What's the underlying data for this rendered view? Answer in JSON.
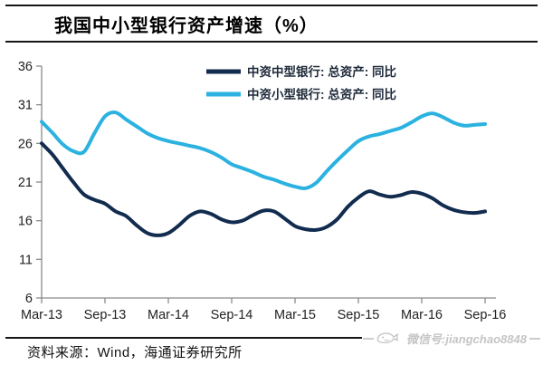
{
  "header": {
    "title": "我国中小型银行资产增速（%）"
  },
  "chart_data": {
    "type": "line",
    "title": "我国中小型银行资产增速（%）",
    "grid": false,
    "legend_position": "top-center",
    "ylim": [
      6,
      36
    ],
    "y_ticks": [
      36,
      31,
      26,
      21,
      16,
      11,
      6
    ],
    "x_tick_labels": [
      "Mar-13",
      "Sep-13",
      "Mar-14",
      "Sep-14",
      "Mar-15",
      "Sep-15",
      "Mar-16",
      "Sep-16"
    ],
    "x_tick_month_indices": [
      0,
      6,
      12,
      18,
      24,
      30,
      36,
      42
    ],
    "x_unit": "monthly points from Mar-13 to Sep-16",
    "series": [
      {
        "name": "中资中型银行: 总资产: 同比",
        "color": "#122c4f",
        "values": [
          26.0,
          24.6,
          22.8,
          21.0,
          19.4,
          18.7,
          18.2,
          17.2,
          16.6,
          15.4,
          14.4,
          14.1,
          14.4,
          15.4,
          16.6,
          17.2,
          16.9,
          16.2,
          15.8,
          16.0,
          16.7,
          17.3,
          17.2,
          16.3,
          15.3,
          14.9,
          14.8,
          15.2,
          16.2,
          17.8,
          19.0,
          19.8,
          19.4,
          19.1,
          19.3,
          19.7,
          19.5,
          18.9,
          18.0,
          17.4,
          17.1,
          17.0,
          17.2
        ]
      },
      {
        "name": "中资小型银行: 总资产: 同比",
        "color": "#2bb2e0",
        "values": [
          28.8,
          27.4,
          25.9,
          25.0,
          24.9,
          27.3,
          29.5,
          30.0,
          29.1,
          28.2,
          27.3,
          26.7,
          26.3,
          26.0,
          25.7,
          25.4,
          24.9,
          24.2,
          23.3,
          22.8,
          22.3,
          21.7,
          21.3,
          20.8,
          20.4,
          20.2,
          20.9,
          22.4,
          23.8,
          25.1,
          26.3,
          26.9,
          27.2,
          27.6,
          28.0,
          28.7,
          29.5,
          29.9,
          29.4,
          28.7,
          28.3,
          28.4,
          28.5
        ]
      }
    ]
  },
  "footer": {
    "source_note": "资料来源：Wind，海通证券研究所",
    "watermark": {
      "icon": "whale-icon",
      "text": "微信号:jiangchao8848",
      "color": "#c5c5c5"
    }
  }
}
